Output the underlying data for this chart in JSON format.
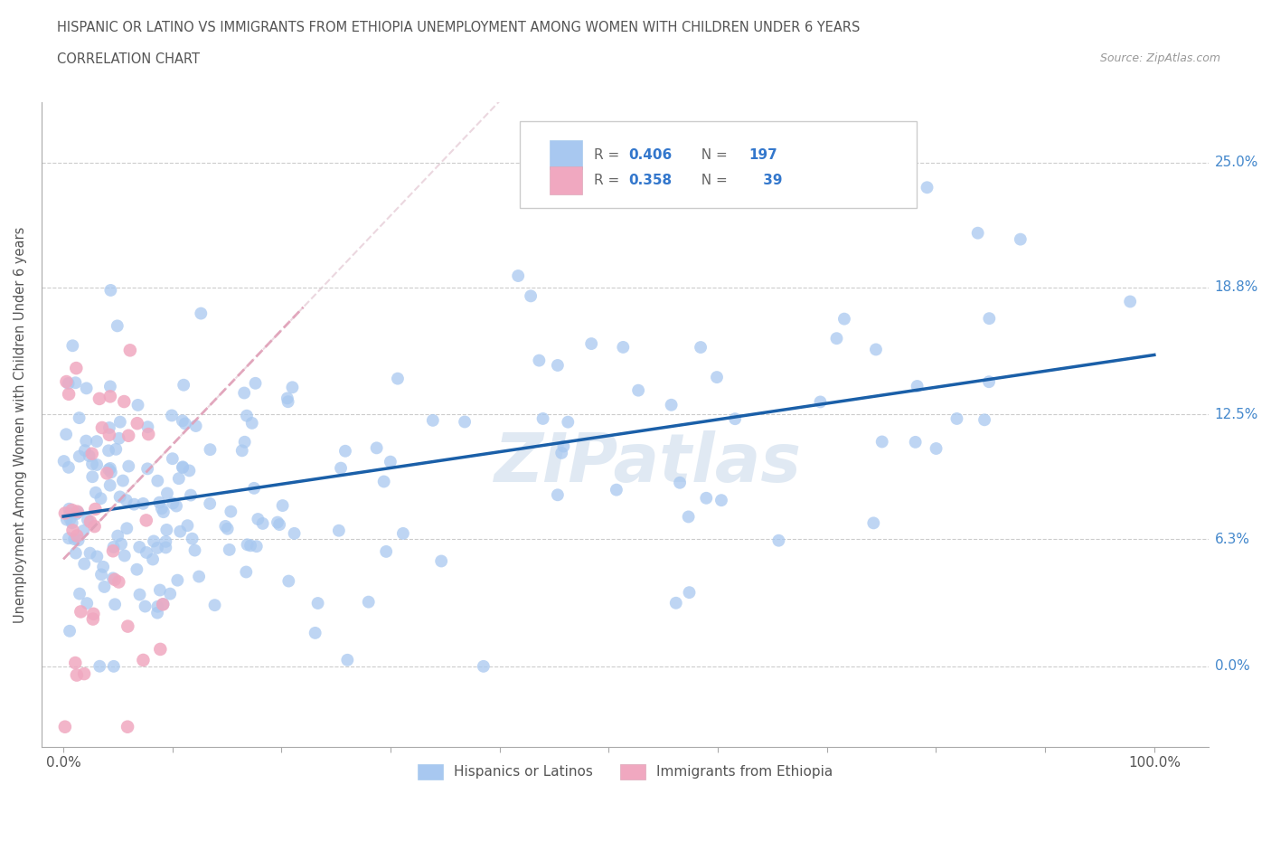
{
  "title_line1": "HISPANIC OR LATINO VS IMMIGRANTS FROM ETHIOPIA UNEMPLOYMENT AMONG WOMEN WITH CHILDREN UNDER 6 YEARS",
  "title_line2": "CORRELATION CHART",
  "source": "Source: ZipAtlas.com",
  "ylabel": "Unemployment Among Women with Children Under 6 years",
  "r_hispanic": 0.406,
  "n_hispanic": 197,
  "r_ethiopia": 0.358,
  "n_ethiopia": 39,
  "color_hispanic": "#a8c8f0",
  "color_hispanic_line": "#1a5fa8",
  "color_ethiopia": "#f0a8c0",
  "color_ethiopia_line": "#d05878",
  "color_ethiopia_dash": "#e0a0b8",
  "watermark": "ZIPatlas",
  "background_color": "#ffffff",
  "grid_color": "#cccccc",
  "ytick_vals": [
    0.0,
    6.3,
    12.5,
    18.8,
    25.0
  ],
  "ytick_labels": [
    "0.0%",
    "6.3%",
    "12.5%",
    "18.8%",
    "25.0%"
  ],
  "xlim": [
    -2,
    105
  ],
  "ylim": [
    -4,
    28
  ]
}
